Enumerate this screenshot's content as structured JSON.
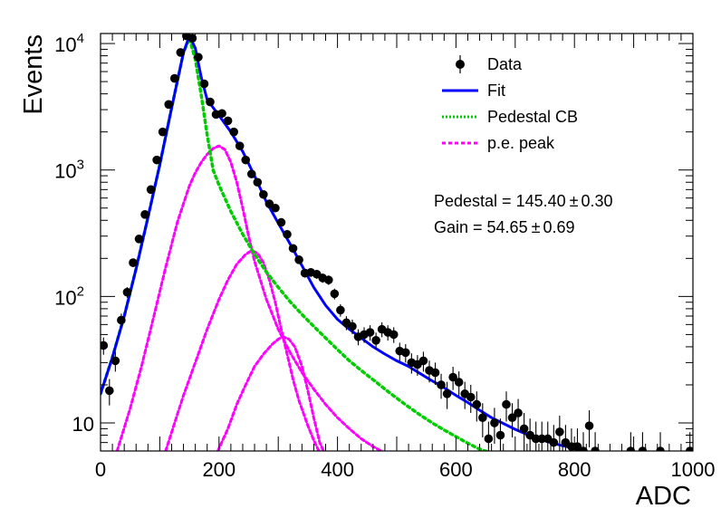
{
  "chart_data": {
    "type": "scatter",
    "xlabel": "ADC",
    "ylabel": "Events",
    "x_range": [
      0,
      1000
    ],
    "y_range": [
      6,
      12000
    ],
    "y_scale": "log",
    "x_ticks": [
      "0",
      "200",
      "400",
      "600",
      "800",
      "1000"
    ],
    "y_ticks": [
      {
        "value": 10,
        "base": "10",
        "exp": ""
      },
      {
        "value": 100,
        "base": "10",
        "exp": "2"
      },
      {
        "value": 1000,
        "base": "10",
        "exp": "3"
      },
      {
        "value": 10000,
        "base": "10",
        "exp": "4"
      }
    ],
    "legend_position": "top-right",
    "legend": [
      {
        "label": "Data",
        "style": "marker",
        "color": "#000000"
      },
      {
        "label": "Fit",
        "style": "solid",
        "color": "#0000ff"
      },
      {
        "label": "Pedestal CB",
        "style": "dotted",
        "color": "#00cc00"
      },
      {
        "label": "p.e. peak",
        "style": "dashed",
        "color": "#ff00ff"
      }
    ],
    "stats": [
      {
        "text": "Pedestal = 145.40",
        "pm": "±",
        "err": "0.30"
      },
      {
        "text": "Gain = 54.65",
        "pm": "±",
        "err": "0.69"
      }
    ],
    "series": [
      {
        "name": "Data",
        "points": [
          [
            5,
            41
          ],
          [
            15,
            18
          ],
          [
            25,
            31
          ],
          [
            35,
            65
          ],
          [
            45,
            108
          ],
          [
            55,
            185
          ],
          [
            65,
            285
          ],
          [
            75,
            445
          ],
          [
            85,
            700
          ],
          [
            95,
            1200
          ],
          [
            105,
            2000
          ],
          [
            115,
            3300
          ],
          [
            125,
            5300
          ],
          [
            135,
            8500
          ],
          [
            145,
            11500
          ],
          [
            155,
            11000
          ],
          [
            165,
            7800
          ],
          [
            175,
            4800
          ],
          [
            185,
            3450
          ],
          [
            195,
            2750
          ],
          [
            205,
            2800
          ],
          [
            215,
            2450
          ],
          [
            225,
            2000
          ],
          [
            235,
            1550
          ],
          [
            245,
            1200
          ],
          [
            255,
            930
          ],
          [
            265,
            800
          ],
          [
            275,
            640
          ],
          [
            285,
            540
          ],
          [
            295,
            500
          ],
          [
            305,
            385
          ],
          [
            315,
            310
          ],
          [
            325,
            240
          ],
          [
            335,
            195
          ],
          [
            345,
            153
          ],
          [
            355,
            155
          ],
          [
            365,
            150
          ],
          [
            375,
            140
          ],
          [
            385,
            135
          ],
          [
            395,
            105
          ],
          [
            405,
            78
          ],
          [
            415,
            62
          ],
          [
            425,
            58
          ],
          [
            435,
            48
          ],
          [
            445,
            50
          ],
          [
            455,
            52
          ],
          [
            465,
            45
          ],
          [
            475,
            55
          ],
          [
            485,
            52
          ],
          [
            495,
            50
          ],
          [
            505,
            37
          ],
          [
            515,
            36
          ],
          [
            525,
            30
          ],
          [
            535,
            29
          ],
          [
            545,
            31
          ],
          [
            555,
            26
          ],
          [
            565,
            25
          ],
          [
            575,
            20
          ],
          [
            585,
            17
          ],
          [
            595,
            23
          ],
          [
            605,
            21
          ],
          [
            615,
            17
          ],
          [
            625,
            16
          ],
          [
            635,
            14
          ],
          [
            645,
            11
          ],
          [
            655,
            7.5
          ],
          [
            665,
            10
          ],
          [
            675,
            8
          ],
          [
            685,
            14
          ],
          [
            695,
            11
          ],
          [
            705,
            12
          ],
          [
            715,
            9
          ],
          [
            725,
            8
          ],
          [
            735,
            7.5
          ],
          [
            745,
            7.5
          ],
          [
            755,
            7.5
          ],
          [
            765,
            7
          ],
          [
            775,
            8.5
          ],
          [
            785,
            7
          ],
          [
            795,
            6.5
          ],
          [
            805,
            6.5
          ],
          [
            815,
            6
          ],
          [
            825,
            9.5
          ],
          [
            835,
            6
          ],
          [
            895,
            6
          ],
          [
            915,
            6
          ],
          [
            945,
            6
          ],
          [
            995,
            6
          ]
        ]
      },
      {
        "name": "Fit",
        "points": [
          [
            0,
            17
          ],
          [
            20,
            33
          ],
          [
            40,
            70
          ],
          [
            60,
            165
          ],
          [
            80,
            420
          ],
          [
            100,
            1100
          ],
          [
            120,
            3100
          ],
          [
            140,
            8500
          ],
          [
            150,
            11500
          ],
          [
            160,
            9200
          ],
          [
            170,
            5400
          ],
          [
            180,
            3600
          ],
          [
            200,
            2700
          ],
          [
            220,
            2000
          ],
          [
            240,
            1400
          ],
          [
            260,
            900
          ],
          [
            280,
            560
          ],
          [
            300,
            380
          ],
          [
            320,
            260
          ],
          [
            340,
            175
          ],
          [
            360,
            118
          ],
          [
            380,
            85
          ],
          [
            400,
            66
          ],
          [
            420,
            55
          ],
          [
            440,
            47
          ],
          [
            460,
            40
          ],
          [
            480,
            35
          ],
          [
            500,
            31
          ],
          [
            520,
            28
          ],
          [
            540,
            24.5
          ],
          [
            560,
            21.5
          ],
          [
            580,
            19
          ],
          [
            600,
            16.5
          ],
          [
            620,
            14.5
          ],
          [
            640,
            12.6
          ],
          [
            660,
            11
          ],
          [
            680,
            9.9
          ],
          [
            700,
            8.9
          ],
          [
            720,
            8.1
          ],
          [
            740,
            7.5
          ],
          [
            760,
            7.0
          ],
          [
            780,
            6.6
          ],
          [
            800,
            6.3
          ],
          [
            820,
            6.0
          ]
        ]
      },
      {
        "name": "Pedestal CB",
        "points": [
          [
            0,
            17
          ],
          [
            20,
            33
          ],
          [
            40,
            70
          ],
          [
            60,
            165
          ],
          [
            80,
            420
          ],
          [
            100,
            1100
          ],
          [
            120,
            3100
          ],
          [
            140,
            8500
          ],
          [
            150,
            11000
          ],
          [
            160,
            7500
          ],
          [
            170,
            3900
          ],
          [
            180,
            1900
          ],
          [
            190,
            1000
          ],
          [
            200,
            760
          ],
          [
            220,
            470
          ],
          [
            240,
            310
          ],
          [
            260,
            215
          ],
          [
            280,
            156
          ],
          [
            300,
            118
          ],
          [
            320,
            91
          ],
          [
            340,
            72
          ],
          [
            360,
            58
          ],
          [
            380,
            47
          ],
          [
            400,
            38
          ],
          [
            420,
            31
          ],
          [
            440,
            26
          ],
          [
            460,
            22
          ],
          [
            480,
            18.5
          ],
          [
            500,
            15.7
          ],
          [
            520,
            13.4
          ],
          [
            540,
            11.5
          ],
          [
            560,
            10
          ],
          [
            580,
            8.8
          ],
          [
            600,
            7.8
          ],
          [
            620,
            6.9
          ],
          [
            640,
            6.2
          ],
          [
            660,
            5.8
          ]
        ]
      },
      {
        "name": "p.e. peak 1",
        "points": [
          [
            28,
            6
          ],
          [
            50,
            13
          ],
          [
            70,
            29
          ],
          [
            90,
            70
          ],
          [
            110,
            170
          ],
          [
            130,
            390
          ],
          [
            150,
            750
          ],
          [
            160,
            950
          ],
          [
            170,
            1150
          ],
          [
            180,
            1330
          ],
          [
            190,
            1480
          ],
          [
            200,
            1550
          ],
          [
            210,
            1450
          ],
          [
            220,
            1150
          ],
          [
            230,
            800
          ],
          [
            240,
            500
          ],
          [
            250,
            300
          ],
          [
            260,
            190
          ],
          [
            280,
            95
          ],
          [
            300,
            55
          ],
          [
            320,
            36
          ],
          [
            340,
            25
          ],
          [
            360,
            18.5
          ],
          [
            380,
            14
          ],
          [
            400,
            11
          ],
          [
            420,
            9
          ],
          [
            440,
            7.5
          ],
          [
            460,
            6.5
          ],
          [
            480,
            5.8
          ],
          [
            500,
            5.5
          ]
        ]
      },
      {
        "name": "p.e. peak 2",
        "points": [
          [
            110,
            6
          ],
          [
            125,
            10
          ],
          [
            140,
            16.5
          ],
          [
            160,
            30
          ],
          [
            180,
            55
          ],
          [
            200,
            95
          ],
          [
            215,
            135
          ],
          [
            230,
            180
          ],
          [
            245,
            215
          ],
          [
            255,
            230
          ],
          [
            265,
            220
          ],
          [
            275,
            185
          ],
          [
            285,
            135
          ],
          [
            295,
            90
          ],
          [
            305,
            55
          ],
          [
            315,
            35
          ],
          [
            325,
            22
          ],
          [
            335,
            15
          ],
          [
            350,
            9.5
          ],
          [
            360,
            7.3
          ],
          [
            370,
            5.8
          ]
        ]
      },
      {
        "name": "p.e. peak 3",
        "points": [
          [
            198,
            6
          ],
          [
            215,
            9
          ],
          [
            230,
            14
          ],
          [
            245,
            20
          ],
          [
            260,
            28
          ],
          [
            275,
            35
          ],
          [
            290,
            42
          ],
          [
            300,
            46
          ],
          [
            308,
            48
          ],
          [
            318,
            46
          ],
          [
            328,
            40
          ],
          [
            340,
            28
          ],
          [
            350,
            18
          ],
          [
            360,
            11
          ],
          [
            370,
            7
          ],
          [
            378,
            5.8
          ]
        ]
      }
    ],
    "colors": {
      "data": "#000000",
      "fit": "#0000ff",
      "pedestal": "#00cc00",
      "pe_peak": "#ff00ff",
      "background": "#ffffff"
    },
    "grid": false
  }
}
